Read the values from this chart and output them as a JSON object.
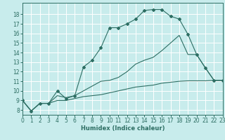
{
  "xlabel": "Humidex (Indice chaleur)",
  "xlim": [
    0,
    23
  ],
  "ylim": [
    7.5,
    19.2
  ],
  "yticks": [
    8,
    9,
    10,
    11,
    12,
    13,
    14,
    15,
    16,
    17,
    18
  ],
  "xticks": [
    0,
    1,
    2,
    3,
    4,
    5,
    6,
    7,
    8,
    9,
    10,
    11,
    12,
    13,
    14,
    15,
    16,
    17,
    18,
    19,
    20,
    21,
    22,
    23
  ],
  "bg_color": "#c8ecec",
  "grid_color": "#ffffff",
  "line_color": "#2d6e63",
  "curve1_x": [
    0,
    1,
    2,
    3,
    4,
    5,
    6,
    7,
    8,
    9,
    10,
    11,
    12,
    13,
    14,
    15,
    16,
    17,
    18,
    19,
    20,
    21,
    22,
    23
  ],
  "curve1_y": [
    9.0,
    7.9,
    8.7,
    8.7,
    10.0,
    9.2,
    9.5,
    12.5,
    13.2,
    14.5,
    16.6,
    16.6,
    17.0,
    17.5,
    18.4,
    18.5,
    18.5,
    17.8,
    17.5,
    15.9,
    13.8,
    12.4,
    11.1,
    11.1
  ],
  "curve2_x": [
    0,
    1,
    2,
    3,
    4,
    5,
    6,
    7,
    8,
    9,
    10,
    11,
    12,
    13,
    14,
    15,
    16,
    17,
    18,
    19,
    20,
    21,
    22,
    23
  ],
  "curve2_y": [
    9.0,
    7.9,
    8.7,
    8.7,
    9.5,
    9.3,
    9.5,
    10.0,
    10.5,
    11.0,
    11.1,
    11.4,
    12.0,
    12.8,
    13.2,
    13.5,
    14.2,
    15.0,
    15.8,
    13.8,
    13.8,
    12.4,
    11.1,
    11.1
  ],
  "curve3_x": [
    0,
    1,
    2,
    3,
    4,
    5,
    6,
    7,
    8,
    9,
    10,
    11,
    12,
    13,
    14,
    15,
    16,
    17,
    18,
    19,
    20,
    21,
    22,
    23
  ],
  "curve3_y": [
    9.0,
    7.9,
    8.7,
    8.7,
    9.0,
    9.0,
    9.2,
    9.4,
    9.5,
    9.6,
    9.8,
    10.0,
    10.2,
    10.4,
    10.5,
    10.6,
    10.8,
    10.9,
    11.0,
    11.05,
    11.05,
    11.05,
    11.1,
    11.1
  ]
}
